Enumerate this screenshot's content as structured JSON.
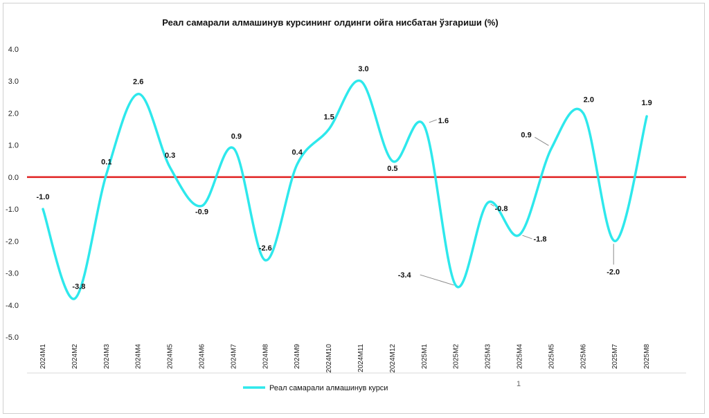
{
  "chart_data": {
    "type": "line",
    "title": "Реал самарали алмашинув курсининг олдинги ойга нисбатан ўзгариши (%)",
    "categories": [
      "2024M1",
      "2024M2",
      "2024M3",
      "2024M4",
      "2024M5",
      "2024M6",
      "2024M7",
      "2024M8",
      "2024M9",
      "2024M10",
      "2024M11",
      "2024M12",
      "2025M1",
      "2025M2",
      "2025M3",
      "2025M4",
      "2025M5",
      "2025M6",
      "2025M7",
      "2025M8"
    ],
    "series": [
      {
        "name": "Реал самарали алмашинув курси",
        "values": [
          -1.0,
          -3.8,
          0.1,
          2.6,
          0.3,
          -0.9,
          0.9,
          -2.6,
          0.4,
          1.5,
          3.0,
          0.5,
          1.6,
          -3.4,
          -0.8,
          -1.8,
          0.9,
          2.0,
          -2.0,
          1.9
        ],
        "labels": [
          "-1.0",
          "-3.8",
          "0.1",
          "2.6",
          "0.3",
          "-0.9",
          "0.9",
          "-2.6",
          "0.4",
          "1.5",
          "3.0",
          "0.5",
          "1.6",
          "-3.4",
          "-0.8",
          "-1.8",
          "0.9",
          "2.0",
          "-2.0",
          "1.9"
        ],
        "color": "#2ee8ec"
      }
    ],
    "reference_line": {
      "value": 0,
      "color": "#e02020"
    },
    "ylim": [
      -5.0,
      4.0
    ],
    "yticks": [
      "4.0",
      "3.0",
      "2.0",
      "1.0",
      "0.0",
      "-1.0",
      "-2.0",
      "-3.0",
      "-4.0",
      "-5.0"
    ],
    "xlabel": "",
    "ylabel": "",
    "legend": "bottom-left",
    "grid": false
  },
  "page_number": "1"
}
